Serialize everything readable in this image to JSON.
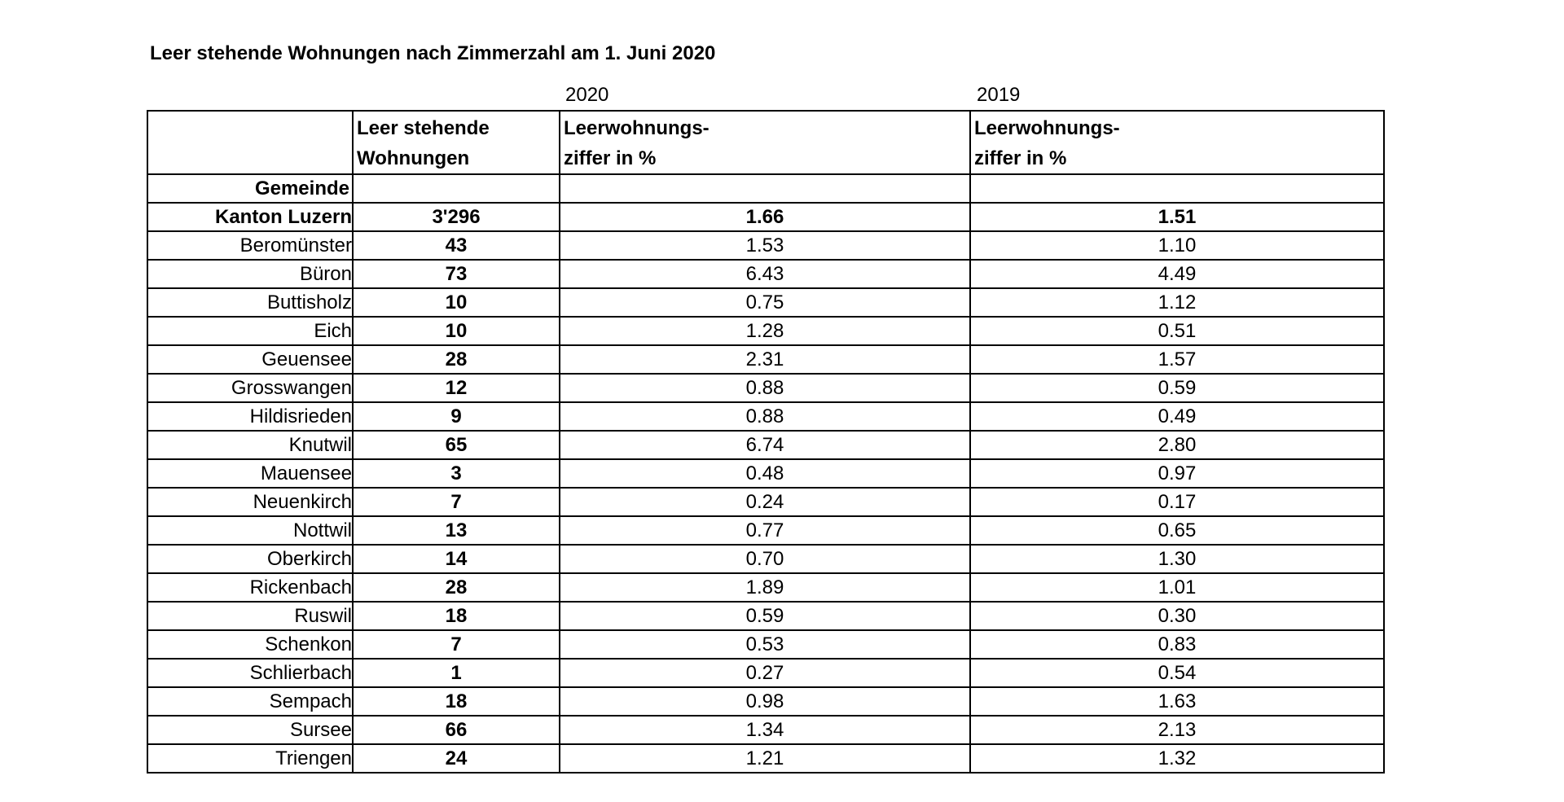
{
  "title": "Leer stehende Wohnungen nach Zimmerzahl am 1. Juni 2020",
  "table": {
    "year_labels": [
      "2020",
      "2019"
    ],
    "headers": {
      "count": "Leer stehende\nWohnungen",
      "rate_2020": "Leerwohnungs-\nziffer in %",
      "rate_2019": "Leerwohnungs-\nziffer in %",
      "row_group": "Gemeinde"
    },
    "total_row": {
      "name": "Kanton Luzern",
      "count": "3'296",
      "rate_2020": "1.66",
      "rate_2019": "1.51"
    },
    "rows": [
      {
        "name": "Beromünster",
        "count": "43",
        "rate_2020": "1.53",
        "rate_2019": "1.10"
      },
      {
        "name": "Büron",
        "count": "73",
        "rate_2020": "6.43",
        "rate_2019": "4.49"
      },
      {
        "name": "Buttisholz",
        "count": "10",
        "rate_2020": "0.75",
        "rate_2019": "1.12"
      },
      {
        "name": "Eich",
        "count": "10",
        "rate_2020": "1.28",
        "rate_2019": "0.51"
      },
      {
        "name": "Geuensee",
        "count": "28",
        "rate_2020": "2.31",
        "rate_2019": "1.57"
      },
      {
        "name": "Grosswangen",
        "count": "12",
        "rate_2020": "0.88",
        "rate_2019": "0.59"
      },
      {
        "name": "Hildisrieden",
        "count": "9",
        "rate_2020": "0.88",
        "rate_2019": "0.49"
      },
      {
        "name": "Knutwil",
        "count": "65",
        "rate_2020": "6.74",
        "rate_2019": "2.80"
      },
      {
        "name": "Mauensee",
        "count": "3",
        "rate_2020": "0.48",
        "rate_2019": "0.97"
      },
      {
        "name": "Neuenkirch",
        "count": "7",
        "rate_2020": "0.24",
        "rate_2019": "0.17"
      },
      {
        "name": "Nottwil",
        "count": "13",
        "rate_2020": "0.77",
        "rate_2019": "0.65"
      },
      {
        "name": "Oberkirch",
        "count": "14",
        "rate_2020": "0.70",
        "rate_2019": "1.30"
      },
      {
        "name": "Rickenbach",
        "count": "28",
        "rate_2020": "1.89",
        "rate_2019": "1.01"
      },
      {
        "name": "Ruswil",
        "count": "18",
        "rate_2020": "0.59",
        "rate_2019": "0.30"
      },
      {
        "name": "Schenkon",
        "count": "7",
        "rate_2020": "0.53",
        "rate_2019": "0.83"
      },
      {
        "name": "Schlierbach",
        "count": "1",
        "rate_2020": "0.27",
        "rate_2019": "0.54"
      },
      {
        "name": "Sempach",
        "count": "18",
        "rate_2020": "0.98",
        "rate_2019": "1.63"
      },
      {
        "name": "Sursee",
        "count": "66",
        "rate_2020": "1.34",
        "rate_2019": "2.13"
      },
      {
        "name": "Triengen",
        "count": "24",
        "rate_2020": "1.21",
        "rate_2019": "1.32"
      }
    ]
  }
}
